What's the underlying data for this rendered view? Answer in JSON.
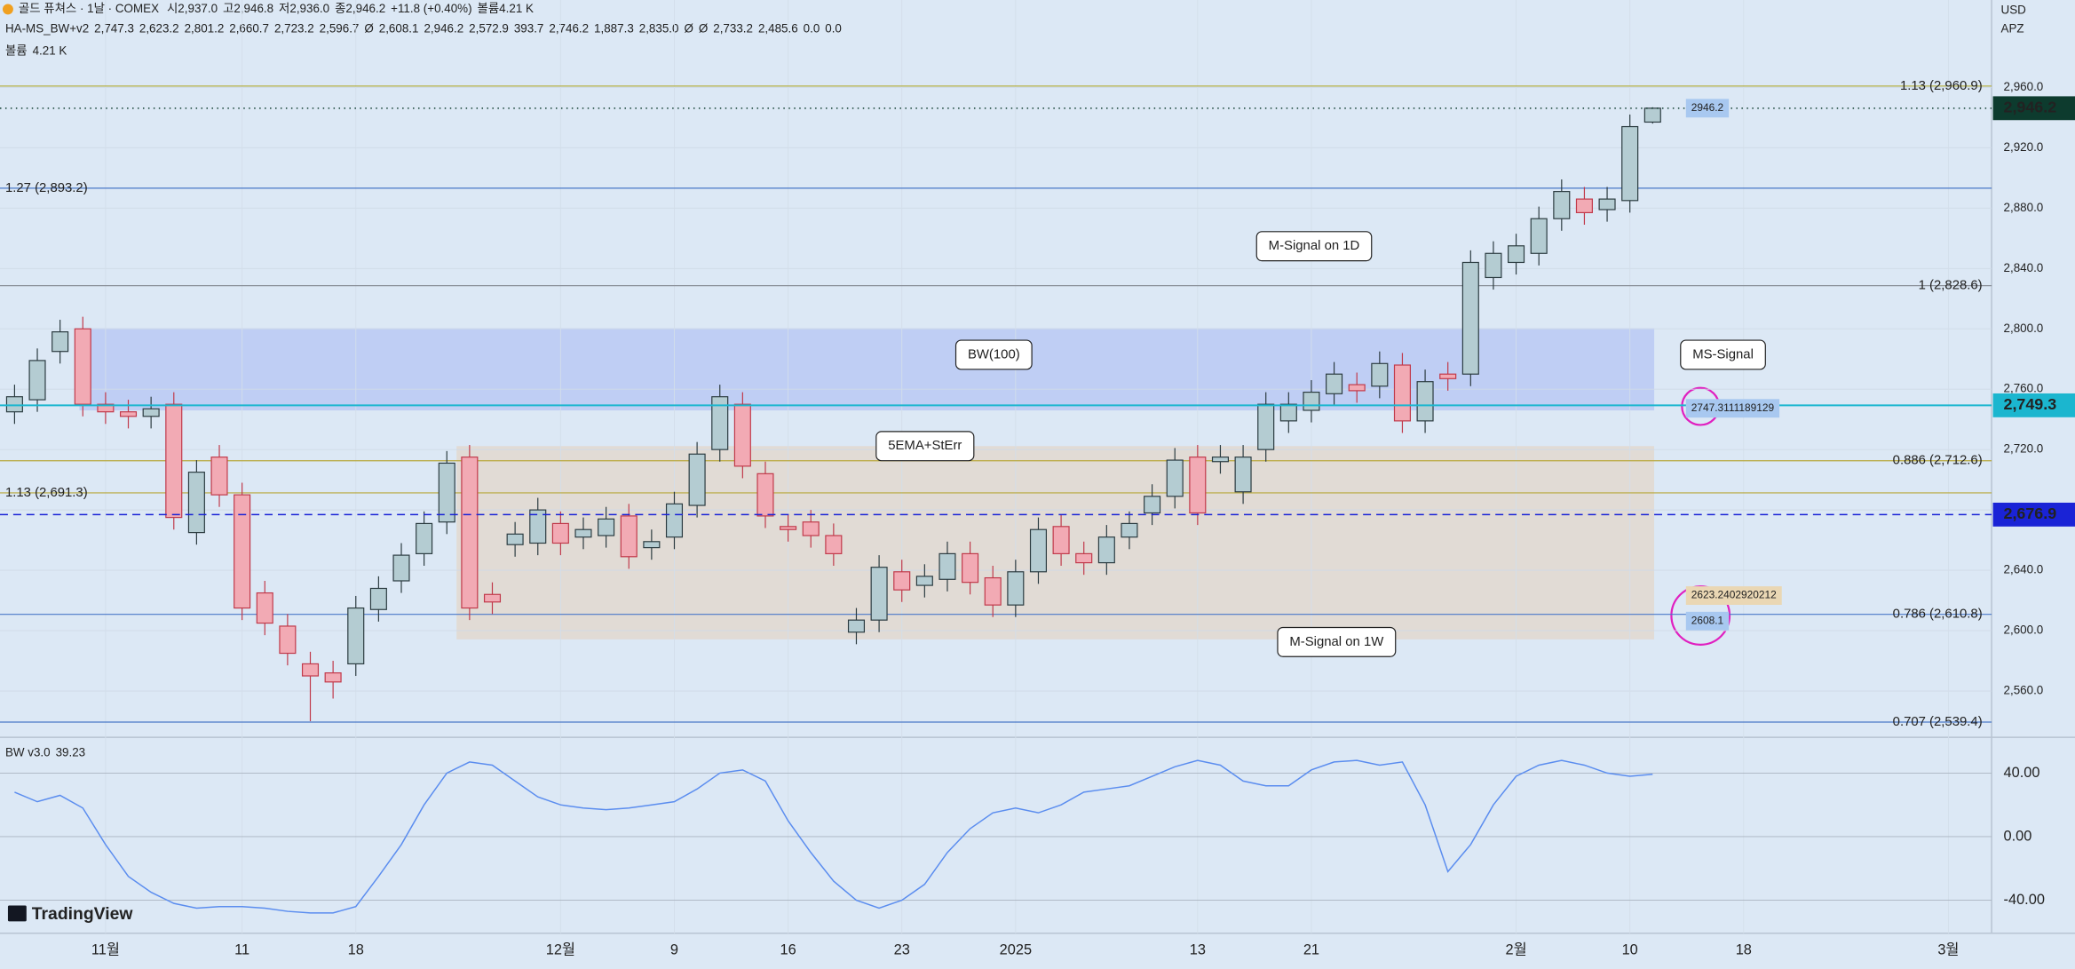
{
  "chart_data": [
    {
      "type": "candlestick",
      "title": "골드 퓨쳐스 · 1날 · COMEX",
      "ohlc_legend": [
        "시2,937.0",
        "고2,946.8",
        "저2,936.0",
        "종2,946.2",
        "+11.8 (+0.40%)",
        "볼륨4.21 K"
      ],
      "indicator_name": "HA-MS_BW+v2",
      "indicator_values": [
        {
          "text": "2,747.3",
          "color": "#2962ff"
        },
        {
          "text": "2,623.2",
          "color": "#f7931e"
        },
        {
          "text": "2,801.2",
          "color": "#2962ff"
        },
        {
          "text": "2,660.7",
          "color": "#333333"
        },
        {
          "text": "2,723.2",
          "color": "#f7931e"
        },
        {
          "text": "2,596.7",
          "color": "#f7931e"
        },
        {
          "text": "Ø",
          "color": "#333333"
        },
        {
          "text": "2,608.1",
          "color": "#2e7d32"
        },
        {
          "text": "2,946.2",
          "color": "#333333"
        },
        {
          "text": "2,572.9",
          "color": "#9c27b0"
        },
        {
          "text": "393.7",
          "color": "#888888"
        },
        {
          "text": "2,746.2",
          "color": "#2962ff"
        },
        {
          "text": "1,887.3",
          "color": "#1b5e20"
        },
        {
          "text": "2,835.0",
          "color": "#880e4f"
        },
        {
          "text": "Ø",
          "color": "#333333"
        },
        {
          "text": "Ø",
          "color": "#333333"
        },
        {
          "text": "2,733.2",
          "color": "#d4c24a"
        },
        {
          "text": "2,485.6",
          "color": "#8d6e00"
        },
        {
          "text": "0.0",
          "color": "#00bcd4"
        },
        {
          "text": "0.0",
          "color": "#4caf50"
        }
      ],
      "volume_label": "볼륨",
      "volume_value": "4.21 K",
      "currency": "USD",
      "scale_mode": "APZ",
      "logo": "TradingView",
      "open": [
        2745,
        2753,
        2785,
        2800,
        2750,
        2745,
        2742,
        2750,
        2665,
        2715,
        2690,
        2625,
        2603,
        2578,
        2572,
        2578,
        2614,
        2633,
        2651,
        2672,
        2715,
        2624,
        2657,
        2658,
        2671,
        2662,
        2663,
        2676,
        2655,
        2662,
        2683,
        2720,
        2750,
        2704,
        2669,
        2672,
        2663,
        2599,
        2607,
        2639,
        2630,
        2634,
        2651,
        2635,
        2617,
        2639,
        2669,
        2651,
        2645,
        2662,
        2678,
        2689,
        2715,
        2712,
        2692,
        2720,
        2739,
        2746,
        2757,
        2763,
        2762,
        2776,
        2739,
        2770,
        2770,
        2834,
        2844,
        2850,
        2873,
        2886,
        2879,
        2885,
        2937.0
      ],
      "high": [
        2763,
        2787,
        2806,
        2808,
        2758,
        2753,
        2755,
        2758,
        2713,
        2723,
        2698,
        2633,
        2611,
        2586,
        2580,
        2623,
        2636,
        2658,
        2679,
        2719,
        2723,
        2632,
        2672,
        2688,
        2679,
        2675,
        2682,
        2684,
        2667,
        2692,
        2725,
        2763,
        2758,
        2712,
        2677,
        2680,
        2671,
        2615,
        2650,
        2647,
        2644,
        2659,
        2659,
        2643,
        2647,
        2675,
        2677,
        2659,
        2670,
        2679,
        2697,
        2721,
        2723,
        2723,
        2723,
        2758,
        2758,
        2766,
        2778,
        2771,
        2785,
        2784,
        2773,
        2778,
        2852,
        2858,
        2863,
        2881,
        2899,
        2894,
        2894,
        2942,
        2946.8
      ],
      "low": [
        2737,
        2745,
        2777,
        2742,
        2737,
        2734,
        2734,
        2667,
        2657,
        2682,
        2607,
        2597,
        2577,
        2540,
        2555,
        2570,
        2606,
        2625,
        2643,
        2664,
        2607,
        2611,
        2649,
        2650,
        2650,
        2654,
        2655,
        2641,
        2647,
        2654,
        2675,
        2712,
        2701,
        2668,
        2659,
        2655,
        2643,
        2591,
        2599,
        2619,
        2622,
        2626,
        2624,
        2609,
        2609,
        2631,
        2643,
        2637,
        2637,
        2654,
        2670,
        2681,
        2670,
        2704,
        2684,
        2712,
        2731,
        2738,
        2749,
        2751,
        2754,
        2731,
        2731,
        2759,
        2762,
        2826,
        2836,
        2842,
        2865,
        2869,
        2871,
        2877,
        2936.0
      ],
      "close": [
        2755,
        2779,
        2798,
        2750,
        2745,
        2742,
        2747,
        2675,
        2705,
        2690,
        2615,
        2605,
        2585,
        2570,
        2566,
        2615,
        2628,
        2650,
        2671,
        2711,
        2615,
        2619,
        2664,
        2680,
        2658,
        2667,
        2674,
        2649,
        2659,
        2684,
        2717,
        2755,
        2709,
        2676,
        2667,
        2663,
        2651,
        2607,
        2642,
        2627,
        2636,
        2651,
        2632,
        2617,
        2639,
        2667,
        2651,
        2645,
        2662,
        2671,
        2689,
        2713,
        2678,
        2715,
        2715,
        2750,
        2750,
        2758,
        2770,
        2759,
        2777,
        2739,
        2765,
        2767,
        2844,
        2850,
        2855,
        2873,
        2891,
        2877,
        2886,
        2934,
        2946.2
      ],
      "up_color": "#b4ccd2",
      "down_color": "#f2aab4",
      "xlim": [
        -0.64,
        86.9
      ],
      "xticks": [
        {
          "value": 4,
          "label": "11월"
        },
        {
          "value": 10,
          "label": "11"
        },
        {
          "value": 15,
          "label": "18"
        },
        {
          "value": 24,
          "label": "12월"
        },
        {
          "value": 29,
          "label": "9"
        },
        {
          "value": 34,
          "label": "16"
        },
        {
          "value": 39,
          "label": "23"
        },
        {
          "value": 44,
          "label": "2025"
        },
        {
          "value": 52,
          "label": "13"
        },
        {
          "value": 57,
          "label": "21"
        },
        {
          "value": 66,
          "label": "2월"
        },
        {
          "value": 71,
          "label": "10"
        },
        {
          "value": 76,
          "label": "18"
        },
        {
          "value": 85,
          "label": "3월"
        }
      ],
      "ylim": [
        2529.3,
        3017.9
      ],
      "yticks": [
        {
          "value": 2560,
          "label": "2,560.0"
        },
        {
          "value": 2600,
          "label": "2,600.0"
        },
        {
          "value": 2640,
          "label": "2,640.0"
        },
        {
          "value": 2680,
          "label": "2,680.0"
        },
        {
          "value": 2720,
          "label": "2,720.0"
        },
        {
          "value": 2760,
          "label": "2,760.0"
        },
        {
          "value": 2800,
          "label": "2,800.0"
        },
        {
          "value": 2840,
          "label": "2,840.0"
        },
        {
          "value": 2880,
          "label": "2,880.0"
        },
        {
          "value": 2920,
          "label": "2,920.0"
        },
        {
          "value": 2960,
          "label": "2,960.0"
        }
      ],
      "grid": true,
      "levels": [
        {
          "value": 2960.9,
          "label": "1.13 (2,960.9)",
          "color": "#b8b24c",
          "side": "right"
        },
        {
          "value": 2893.2,
          "label": "1.27 (2,893.2)",
          "color": "#4a78c8",
          "side": "left"
        },
        {
          "value": 2828.6,
          "label": "1 (2,828.6)",
          "color": "#8a8f98",
          "side": "right"
        },
        {
          "value": 2712.6,
          "label": "0.886 (2,712.6)",
          "color": "#b8a83c",
          "side": "right"
        },
        {
          "value": 2691.3,
          "label": "1.13 (2,691.3)",
          "color": "#b8a83c",
          "side": "left"
        },
        {
          "value": 2610.8,
          "label": "0.786 (2,610.8)",
          "color": "#4a78c8",
          "side": "right"
        },
        {
          "value": 2539.4,
          "label": "0.707 (2,539.4)",
          "color": "#4a78c8",
          "side": "right"
        }
      ],
      "price_tags": [
        {
          "value": 2946.2,
          "label": "2,946.2",
          "color": "#0d3b2e",
          "style": "dotted"
        },
        {
          "value": 2749.3,
          "label": "2,749.3",
          "color": "#1bb6cf",
          "style": "solid"
        },
        {
          "value": 2676.9,
          "label": "2,676.9",
          "color": "#1a23d6",
          "style": "dashed"
        }
      ],
      "price_notes": [
        2946.2,
        2747.3111189129,
        2623.2402920212,
        2608.1
      ],
      "annotations": [
        "M-Signal on 1D",
        "BW(100)",
        "5EMA+StErr",
        "MS-Signal",
        "M-Signal on 1W"
      ]
    },
    {
      "type": "line",
      "title": "BW v3.0",
      "series": [
        {
          "name": "BW",
          "color": "#5b8def",
          "values": [
            28,
            22,
            26,
            18,
            -5,
            -25,
            -35,
            -42,
            -45,
            -44,
            -44,
            -45,
            -47,
            -48,
            -48,
            -44,
            -25,
            -5,
            20,
            40,
            47,
            45,
            35,
            25,
            20,
            18,
            17,
            18,
            20,
            22,
            30,
            40,
            42,
            35,
            10,
            -10,
            -28,
            -40,
            -45,
            -40,
            -30,
            -10,
            5,
            15,
            18,
            15,
            20,
            28,
            30,
            32,
            38,
            44,
            48,
            45,
            35,
            32,
            32,
            42,
            47,
            48,
            45,
            47,
            20,
            -22,
            -5,
            20,
            38,
            45,
            48,
            45,
            40,
            38,
            39.23
          ]
        }
      ],
      "xlim": [
        -0.64,
        86.9
      ],
      "ylim": [
        -60.8,
        62.5
      ],
      "yticks": [
        {
          "value": 40,
          "label": "40.00"
        },
        {
          "value": 0,
          "label": "0.00"
        },
        {
          "value": -40,
          "label": "-40.00"
        }
      ],
      "grid": true
    }
  ]
}
